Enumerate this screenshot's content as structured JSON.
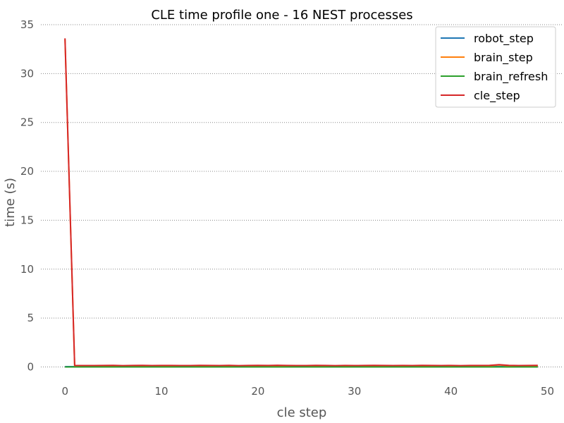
{
  "chart_data": {
    "type": "line",
    "title": "CLE time profile one - 16 NEST processes",
    "xlabel": "cle step",
    "ylabel": "time (s)",
    "xlim": [
      -2.5,
      51.5
    ],
    "ylim": [
      -0.4,
      35
    ],
    "xticks": [
      0,
      10,
      20,
      30,
      40,
      50
    ],
    "yticks": [
      0,
      5,
      10,
      15,
      20,
      25,
      30,
      35
    ],
    "grid": "horizontal dotted",
    "legend_position": "top-right",
    "x": [
      0,
      1,
      2,
      3,
      4,
      5,
      6,
      7,
      8,
      9,
      10,
      11,
      12,
      13,
      14,
      15,
      16,
      17,
      18,
      19,
      20,
      21,
      22,
      23,
      24,
      25,
      26,
      27,
      28,
      29,
      30,
      31,
      32,
      33,
      34,
      35,
      36,
      37,
      38,
      39,
      40,
      41,
      42,
      43,
      44,
      45,
      46,
      47,
      48,
      49
    ],
    "series": [
      {
        "name": "robot_step",
        "color": "#1f77b4",
        "values": [
          0.03,
          0.03,
          0.03,
          0.03,
          0.03,
          0.03,
          0.03,
          0.03,
          0.03,
          0.03,
          0.03,
          0.03,
          0.03,
          0.03,
          0.03,
          0.03,
          0.03,
          0.03,
          0.03,
          0.03,
          0.03,
          0.03,
          0.03,
          0.03,
          0.03,
          0.03,
          0.03,
          0.03,
          0.03,
          0.03,
          0.03,
          0.03,
          0.03,
          0.03,
          0.03,
          0.03,
          0.03,
          0.03,
          0.03,
          0.03,
          0.03,
          0.03,
          0.03,
          0.03,
          0.03,
          0.03,
          0.03,
          0.03,
          0.03,
          0.03
        ]
      },
      {
        "name": "brain_step",
        "color": "#ff7f0e",
        "values": [
          33.5,
          0.12,
          0.11,
          0.11,
          0.12,
          0.13,
          0.1,
          0.12,
          0.13,
          0.11,
          0.12,
          0.12,
          0.11,
          0.11,
          0.13,
          0.12,
          0.11,
          0.13,
          0.1,
          0.12,
          0.13,
          0.12,
          0.14,
          0.12,
          0.11,
          0.11,
          0.13,
          0.12,
          0.1,
          0.12,
          0.11,
          0.12,
          0.13,
          0.12,
          0.11,
          0.12,
          0.11,
          0.13,
          0.12,
          0.11,
          0.12,
          0.1,
          0.12,
          0.12,
          0.13,
          0.2,
          0.13,
          0.11,
          0.12,
          0.13
        ]
      },
      {
        "name": "brain_refresh",
        "color": "#2ca02c",
        "values": [
          0.0,
          0.0,
          0.0,
          0.0,
          0.0,
          0.0,
          0.0,
          0.0,
          0.0,
          0.0,
          0.0,
          0.0,
          0.0,
          0.0,
          0.0,
          0.0,
          0.0,
          0.0,
          0.0,
          0.0,
          0.0,
          0.0,
          0.0,
          0.0,
          0.0,
          0.0,
          0.0,
          0.0,
          0.0,
          0.0,
          0.0,
          0.0,
          0.0,
          0.0,
          0.0,
          0.0,
          0.0,
          0.0,
          0.0,
          0.0,
          0.0,
          0.0,
          0.0,
          0.0,
          0.0,
          0.0,
          0.0,
          0.0,
          0.0,
          0.0
        ]
      },
      {
        "name": "cle_step",
        "color": "#d62728",
        "values": [
          33.6,
          0.15,
          0.14,
          0.14,
          0.15,
          0.16,
          0.13,
          0.15,
          0.16,
          0.14,
          0.15,
          0.15,
          0.14,
          0.14,
          0.16,
          0.15,
          0.14,
          0.16,
          0.13,
          0.15,
          0.16,
          0.15,
          0.17,
          0.15,
          0.14,
          0.14,
          0.16,
          0.15,
          0.13,
          0.15,
          0.14,
          0.15,
          0.16,
          0.15,
          0.14,
          0.15,
          0.14,
          0.16,
          0.15,
          0.14,
          0.15,
          0.13,
          0.15,
          0.15,
          0.16,
          0.23,
          0.16,
          0.14,
          0.15,
          0.16
        ]
      }
    ]
  }
}
